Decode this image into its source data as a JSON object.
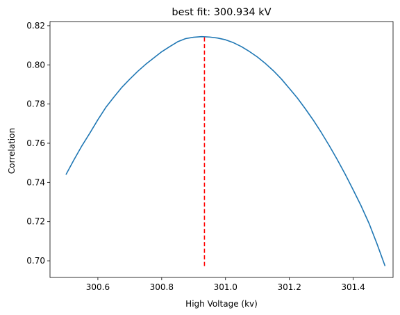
{
  "chart_data": {
    "type": "line",
    "title": "best fit: 300.934 kV",
    "xlabel": "High Voltage (kv)",
    "ylabel": "Correlation",
    "xlim": [
      300.45,
      301.525
    ],
    "ylim": [
      0.6915,
      0.8221
    ],
    "xticks": [
      "300.6",
      "300.8",
      "301.0",
      "301.2",
      "301.4"
    ],
    "xtick_values": [
      300.6,
      300.8,
      301.0,
      301.2,
      301.4
    ],
    "yticks": [
      "0.70",
      "0.72",
      "0.74",
      "0.76",
      "0.78",
      "0.80",
      "0.82"
    ],
    "ytick_values": [
      0.7,
      0.72,
      0.74,
      0.76,
      0.78,
      0.8,
      0.82
    ],
    "grid": false,
    "series": [
      {
        "color": "#1f77b4",
        "x": [
          300.5,
          300.525,
          300.55,
          300.575,
          300.6,
          300.625,
          300.65,
          300.675,
          300.7,
          300.725,
          300.75,
          300.775,
          300.8,
          300.825,
          300.85,
          300.875,
          300.9,
          300.925,
          300.95,
          300.975,
          301.0,
          301.025,
          301.05,
          301.075,
          301.1,
          301.125,
          301.15,
          301.175,
          301.2,
          301.225,
          301.25,
          301.275,
          301.3,
          301.325,
          301.35,
          301.375,
          301.4,
          301.425,
          301.45,
          301.475,
          301.5
        ],
        "values": [
          0.744,
          0.7515,
          0.7587,
          0.7652,
          0.772,
          0.7783,
          0.7835,
          0.7885,
          0.7927,
          0.7967,
          0.8003,
          0.8035,
          0.8067,
          0.8093,
          0.8118,
          0.8134,
          0.8141,
          0.8144,
          0.8142,
          0.8137,
          0.8128,
          0.8113,
          0.8093,
          0.8068,
          0.804,
          0.8007,
          0.797,
          0.7928,
          0.788,
          0.7831,
          0.7776,
          0.7718,
          0.7655,
          0.7588,
          0.7517,
          0.7442,
          0.7362,
          0.728,
          0.719,
          0.7085,
          0.6973
        ]
      }
    ],
    "best_fit": {
      "x": 300.934,
      "ymin": 0.6973,
      "ymax": 0.8144,
      "color": "#ff0000",
      "style": "dashed"
    }
  }
}
